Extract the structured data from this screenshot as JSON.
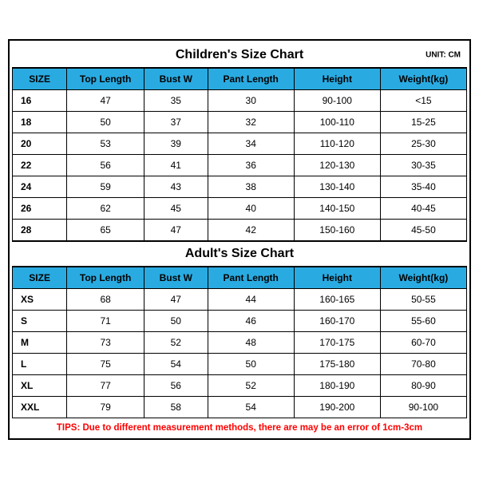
{
  "colors": {
    "header_bg": "#29abe2",
    "border": "#000000",
    "tips": "#ff0000"
  },
  "children": {
    "title": "Children's Size Chart",
    "title_fontsize": 16,
    "unit": "UNIT: CM",
    "columns": [
      "SIZE",
      "Top Length",
      "Bust W",
      "Pant Length",
      "Height",
      "Weight(kg)"
    ],
    "rows": [
      [
        "16",
        "47",
        "35",
        "30",
        "90-100",
        "<15"
      ],
      [
        "18",
        "50",
        "37",
        "32",
        "100-110",
        "15-25"
      ],
      [
        "20",
        "53",
        "39",
        "34",
        "110-120",
        "25-30"
      ],
      [
        "22",
        "56",
        "41",
        "36",
        "120-130",
        "30-35"
      ],
      [
        "24",
        "59",
        "43",
        "38",
        "130-140",
        "35-40"
      ],
      [
        "26",
        "62",
        "45",
        "40",
        "140-150",
        "40-45"
      ],
      [
        "28",
        "65",
        "47",
        "42",
        "150-160",
        "45-50"
      ]
    ]
  },
  "adult": {
    "title": "Adult's Size Chart",
    "title_fontsize": 16,
    "columns": [
      "SIZE",
      "Top Length",
      "Bust W",
      "Pant Length",
      "Height",
      "Weight(kg)"
    ],
    "rows": [
      [
        "XS",
        "68",
        "47",
        "44",
        "160-165",
        "50-55"
      ],
      [
        "S",
        "71",
        "50",
        "46",
        "160-170",
        "55-60"
      ],
      [
        "M",
        "73",
        "52",
        "48",
        "170-175",
        "60-70"
      ],
      [
        "L",
        "75",
        "54",
        "50",
        "175-180",
        "70-80"
      ],
      [
        "XL",
        "77",
        "56",
        "52",
        "180-190",
        "80-90"
      ],
      [
        "XXL",
        "79",
        "58",
        "54",
        "190-200",
        "90-100"
      ]
    ]
  },
  "tips": "TIPS: Due to different measurement methods, there are may be an error of 1cm-3cm"
}
